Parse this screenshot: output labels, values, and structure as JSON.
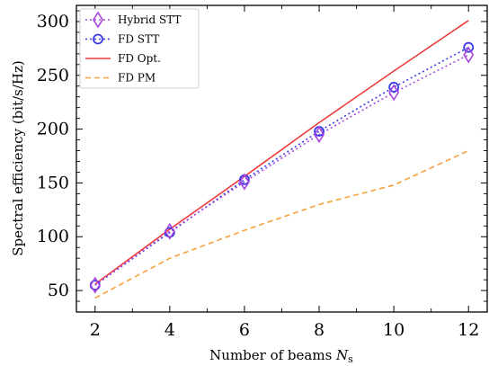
{
  "chart_data": {
    "type": "line",
    "title": "",
    "xlabel": "Number of beams N_s",
    "xlabel_main": "Number of beams ",
    "xlabel_var": "N",
    "xlabel_sub": "s",
    "ylabel": "Spectral efficiency (bit/s/Hz)",
    "xlim": [
      1.5,
      12.5
    ],
    "ylim": [
      30,
      315
    ],
    "x": [
      2,
      4,
      6,
      8,
      10,
      12
    ],
    "x_ticks": [
      2,
      4,
      6,
      8,
      10,
      12
    ],
    "y_ticks": [
      50,
      100,
      150,
      200,
      250,
      300
    ],
    "grid": false,
    "legend_position": "top-left",
    "series": [
      {
        "name": "Hybrid STT",
        "values": [
          55,
          105,
          151,
          195,
          234,
          269
        ],
        "color": "#a545e0",
        "line_style": "dotted",
        "marker": "diamond"
      },
      {
        "name": "FD STT",
        "values": [
          55,
          104,
          153,
          198,
          239,
          276
        ],
        "color": "#3a3ae6",
        "line_style": "dotted",
        "marker": "circle"
      },
      {
        "name": "FD Opt.",
        "values": [
          56,
          107,
          156,
          206,
          254,
          301
        ],
        "color": "#ee3b3b",
        "line_style": "solid",
        "marker": "none"
      },
      {
        "name": "FD PM",
        "values": [
          43,
          80,
          106,
          130,
          148,
          180
        ],
        "color": "#f9a13a",
        "line_style": "dashed",
        "marker": "none"
      }
    ]
  }
}
